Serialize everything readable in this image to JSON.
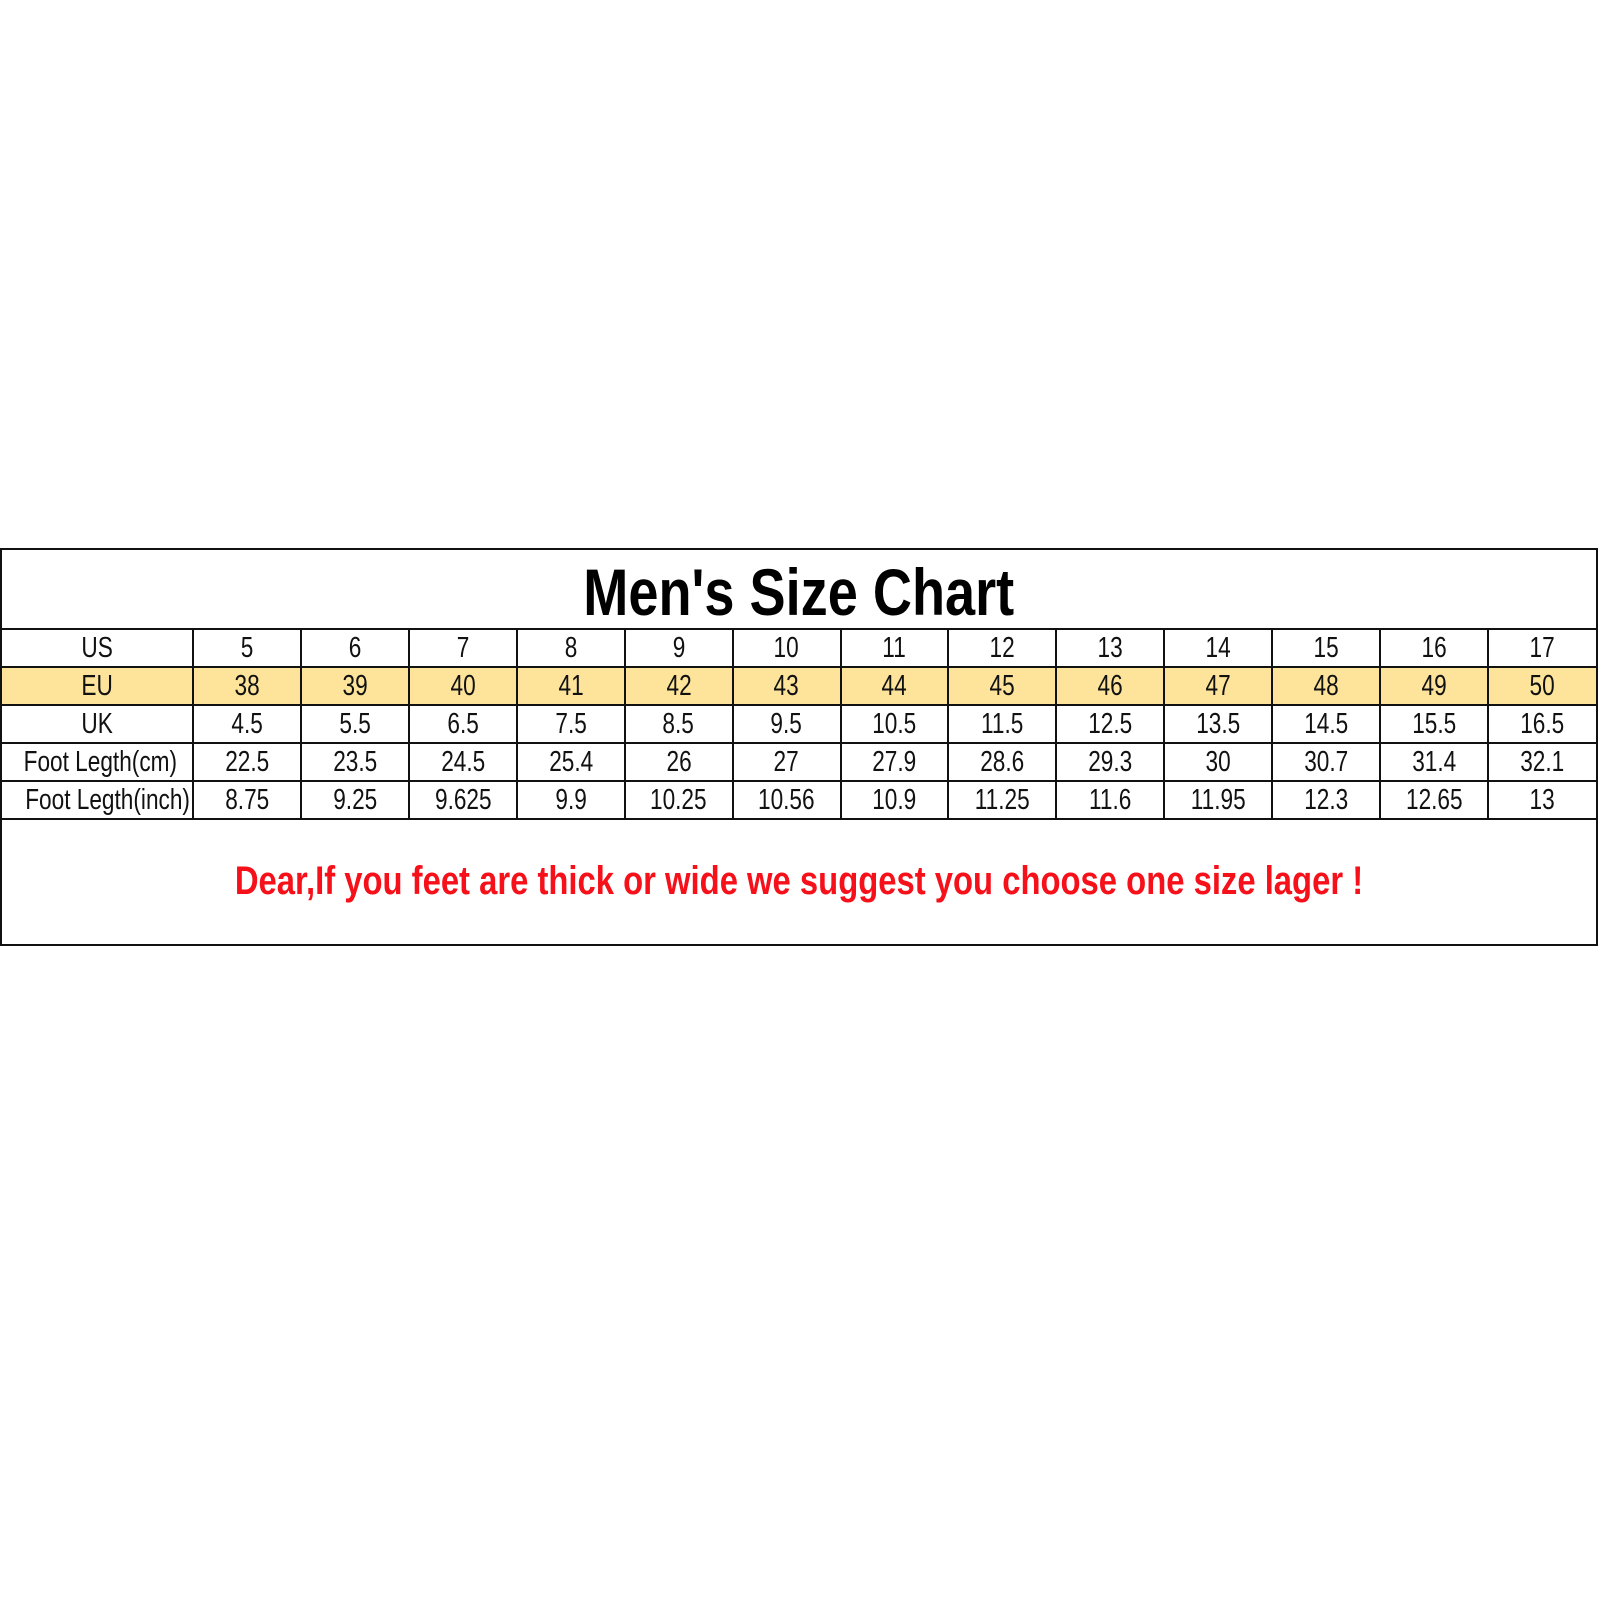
{
  "title": "Men's Size Chart",
  "colors": {
    "eu_row_bg": "#fde49a",
    "note_text": "#f5101a"
  },
  "rows": [
    {
      "label": "US",
      "values": [
        "5",
        "6",
        "7",
        "8",
        "9",
        "10",
        "11",
        "12",
        "13",
        "14",
        "15",
        "16",
        "17"
      ]
    },
    {
      "label": "EU",
      "values": [
        "38",
        "39",
        "40",
        "41",
        "42",
        "43",
        "44",
        "45",
        "46",
        "47",
        "48",
        "49",
        "50"
      ],
      "highlighted": true
    },
    {
      "label": "UK",
      "values": [
        "4.5",
        "5.5",
        "6.5",
        "7.5",
        "8.5",
        "9.5",
        "10.5",
        "11.5",
        "12.5",
        "13.5",
        "14.5",
        "15.5",
        "16.5"
      ]
    },
    {
      "label": "Foot Legth(cm)",
      "values": [
        "22.5",
        "23.5",
        "24.5",
        "25.4",
        "26",
        "27",
        "27.9",
        "28.6",
        "29.3",
        "30",
        "30.7",
        "31.4",
        "32.1"
      ]
    },
    {
      "label": "Foot Legth(inch)",
      "values": [
        "8.75",
        "9.25",
        "9.625",
        "9.9",
        "10.25",
        "10.56",
        "10.9",
        "11.25",
        "11.6",
        "11.95",
        "12.3",
        "12.65",
        "13"
      ]
    }
  ],
  "note": "Dear,If you feet are thick or wide we suggest you choose one size lager !"
}
